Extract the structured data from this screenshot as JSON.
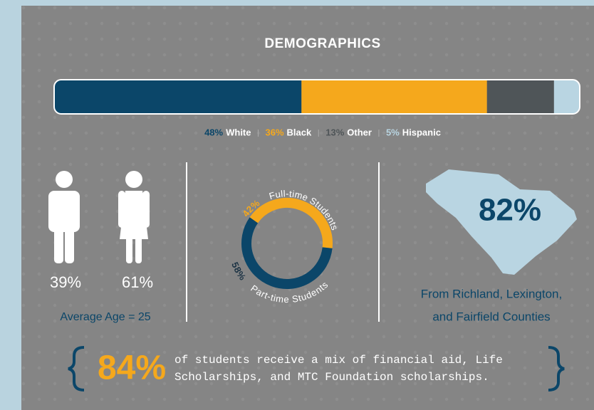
{
  "title": "DEMOGRAPHICS",
  "ethnicity": {
    "segments": [
      {
        "value": 48,
        "label": "48%",
        "name": "White",
        "color": "#0b4669"
      },
      {
        "value": 36,
        "label": "36%",
        "name": "Black",
        "color": "#f5a81c"
      },
      {
        "value": 13,
        "label": "13%",
        "name": "Other",
        "color": "#4f5558"
      },
      {
        "value": 5,
        "label": "5%",
        "name": "Hispanic",
        "color": "#b9d5e2"
      }
    ]
  },
  "gender": {
    "male": "39%",
    "female": "61%",
    "caption": "Average Age = 25"
  },
  "enrollment": {
    "segments": [
      {
        "value": 42,
        "label": "42%",
        "name": "Full-time Students",
        "color": "#f5a81c"
      },
      {
        "value": 58,
        "label": "58%",
        "name": "Part-time Students",
        "color": "#0b4669"
      }
    ]
  },
  "region": {
    "label": "82%",
    "lines": [
      "From Richland, Lexington,",
      "and Fairfield Counties"
    ]
  },
  "aid": {
    "label": "84%",
    "lines": [
      "of students receive a mix of financial aid, Life",
      "Scholarships, and MTC Foundation scholarships."
    ]
  }
}
